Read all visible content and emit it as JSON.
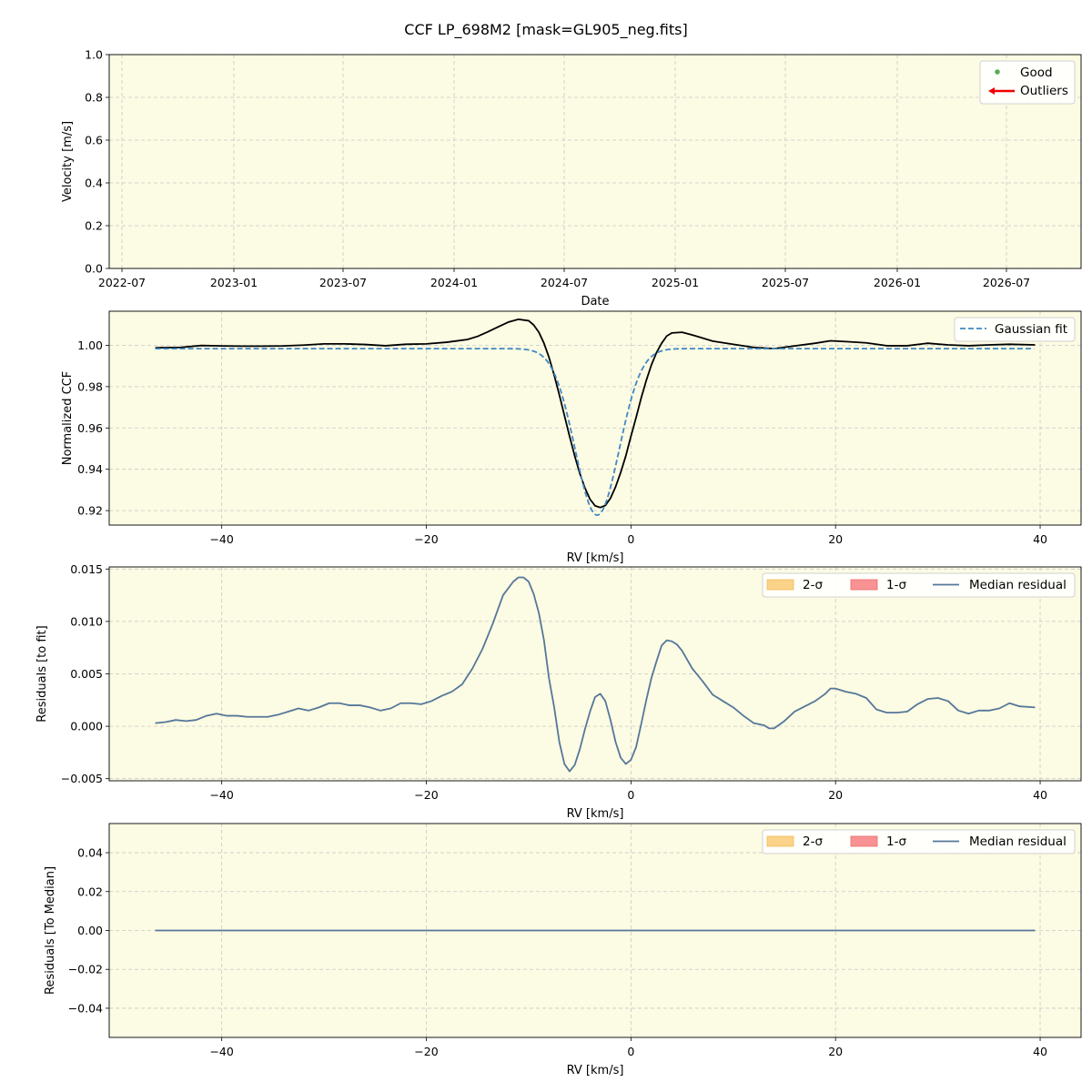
{
  "title": "CCF LP_698M2 [mask=GL905_neg.fits]",
  "colors": {
    "panel_bg": "#fcfbe3",
    "grid": "#c8c8c8",
    "good": "#5aab5a",
    "outlier": "#ee0000",
    "ccf": "#000000",
    "gauss": "#3f88c5",
    "median": "#55779a",
    "band2": "#fbd38a",
    "band1": "#f99393"
  },
  "chart_data": [
    {
      "type": "scatter",
      "xlabel": "Date",
      "ylabel": "Velocity [m/s]",
      "x_ticks": [
        "2022-07",
        "2023-01",
        "2023-07",
        "2024-01",
        "2024-07",
        "2025-01",
        "2025-07",
        "2026-01",
        "2026-07"
      ],
      "y_ticks": [
        "0.0",
        "0.2",
        "0.4",
        "0.6",
        "0.8",
        "1.0"
      ],
      "ylim": [
        0,
        1
      ],
      "grid": true,
      "legend_position": "top-right",
      "series": [
        {
          "name": "Good",
          "marker": "dot",
          "values": []
        },
        {
          "name": "Outliers",
          "marker": "left-arrow",
          "values": []
        }
      ]
    },
    {
      "type": "line",
      "xlabel": "RV [km/s]",
      "ylabel": "Normalized CCF",
      "x_ticks": [
        "−40",
        "−20",
        "0",
        "20",
        "40"
      ],
      "y_ticks": [
        "0.92",
        "0.94",
        "0.96",
        "0.98",
        "1.00"
      ],
      "xlim": [
        -51,
        44
      ],
      "ylim": [
        0.913,
        1.0165
      ],
      "grid": true,
      "legend_position": "top-right",
      "series": [
        {
          "style": "solid",
          "x": [
            -46.5,
            -44,
            -42,
            -40,
            -38,
            -36,
            -34,
            -32,
            -30,
            -28,
            -26,
            -24,
            -22,
            -20,
            -18,
            -16,
            -15,
            -14,
            -13,
            -12,
            -11,
            -10,
            -9.5,
            -9,
            -8.5,
            -8,
            -7.5,
            -7,
            -6.5,
            -6,
            -5.5,
            -5,
            -4.5,
            -4,
            -3.5,
            -3,
            -2.5,
            -2,
            -1.5,
            -1,
            -0.5,
            0,
            0.5,
            1,
            1.5,
            2,
            2.5,
            3,
            3.5,
            4,
            5,
            6,
            8,
            10,
            12,
            14,
            16,
            18,
            19.5,
            21,
            23,
            25,
            27,
            29,
            31,
            33,
            35,
            37,
            39.5
          ],
          "values": [
            0.9988,
            0.999,
            0.9999,
            0.9997,
            0.9996,
            0.9996,
            0.9997,
            1.0001,
            1.0007,
            1.0007,
            1.0004,
            0.9998,
            1.0005,
            1.0007,
            1.0015,
            1.0028,
            1.0043,
            1.0065,
            1.0089,
            1.0112,
            1.0126,
            1.0119,
            1.0098,
            1.0063,
            1.001,
            0.994,
            0.9855,
            0.976,
            0.966,
            0.956,
            0.9465,
            0.938,
            0.931,
            0.9255,
            0.9223,
            0.9215,
            0.9225,
            0.926,
            0.9315,
            0.9385,
            0.9465,
            0.956,
            0.965,
            0.9745,
            0.983,
            0.9905,
            0.9965,
            1.001,
            1.0045,
            1.006,
            1.0063,
            1.005,
            1.002,
            1.0005,
            0.999,
            0.9984,
            0.9997,
            1.001,
            1.0022,
            1.0018,
            1.0012,
            0.9998,
            0.9998,
            1.001,
            1.0002,
            0.9998,
            1.0002,
            1.0005,
            1.0002
          ]
        },
        {
          "name": "Gaussian fit",
          "style": "dashed",
          "model": "gaussian",
          "center": -3.3,
          "sigma": 2.15,
          "baseline": 0.9984,
          "depth": 0.0806
        }
      ]
    },
    {
      "type": "line",
      "xlabel": "RV [km/s]",
      "ylabel": "Residuals [to fit]",
      "x_ticks": [
        "−40",
        "−20",
        "0",
        "20",
        "40"
      ],
      "y_ticks": [
        "−0.005",
        "0.000",
        "0.005",
        "0.010",
        "0.015"
      ],
      "xlim": [
        -51,
        44
      ],
      "ylim": [
        -0.0052,
        0.0152
      ],
      "grid": true,
      "legend_position": "top-right",
      "legend_columns": 3,
      "series": [
        {
          "name": "2-σ",
          "kind": "band",
          "values": []
        },
        {
          "name": "1-σ",
          "kind": "band",
          "values": []
        },
        {
          "name": "Median residual",
          "x": [
            -46.5,
            -45.5,
            -44.5,
            -43.5,
            -42.5,
            -41.5,
            -40.5,
            -39.5,
            -38.5,
            -37.5,
            -36.5,
            -35.5,
            -34.5,
            -33.5,
            -32.5,
            -31.5,
            -30.5,
            -29.5,
            -28.5,
            -27.5,
            -26.5,
            -25.5,
            -24.5,
            -23.5,
            -22.5,
            -21.5,
            -20.5,
            -19.5,
            -18.5,
            -17.5,
            -16.5,
            -15.5,
            -14.5,
            -13.5,
            -12.5,
            -11.5,
            -11,
            -10.5,
            -10,
            -9.5,
            -9,
            -8.5,
            -8,
            -7.5,
            -7,
            -6.5,
            -6,
            -5.5,
            -5,
            -4.5,
            -4,
            -3.5,
            -3,
            -2.5,
            -2,
            -1.5,
            -1,
            -0.5,
            0,
            0.5,
            1,
            1.5,
            2,
            2.5,
            3,
            3.5,
            4,
            4.5,
            5,
            6,
            7,
            8,
            9,
            10,
            11,
            12,
            13,
            13.5,
            14,
            15,
            16,
            17,
            18,
            19,
            19.5,
            20,
            21,
            22,
            23,
            24,
            25,
            26,
            27,
            28,
            29,
            30,
            31,
            32,
            33,
            34,
            35,
            36,
            37,
            38,
            39.5
          ],
          "values": [
            0.0003,
            0.0004,
            0.0006,
            0.0005,
            0.0006,
            0.001,
            0.0012,
            0.001,
            0.001,
            0.0009,
            0.0009,
            0.0009,
            0.0011,
            0.0014,
            0.0017,
            0.0015,
            0.0018,
            0.0022,
            0.0022,
            0.002,
            0.002,
            0.0018,
            0.0015,
            0.0017,
            0.0022,
            0.0022,
            0.0021,
            0.0024,
            0.0029,
            0.0033,
            0.004,
            0.0055,
            0.0074,
            0.0098,
            0.0125,
            0.0138,
            0.0142,
            0.0142,
            0.0138,
            0.0126,
            0.0108,
            0.0082,
            0.0045,
            0.0018,
            -0.0015,
            -0.0036,
            -0.0043,
            -0.0037,
            -0.0022,
            -0.0003,
            0.0014,
            0.0028,
            0.0031,
            0.0024,
            0.0006,
            -0.0015,
            -0.003,
            -0.0036,
            -0.0032,
            -0.002,
            0.0002,
            0.0025,
            0.0046,
            0.0062,
            0.0077,
            0.0082,
            0.0081,
            0.0078,
            0.0072,
            0.0055,
            0.0043,
            0.003,
            0.0024,
            0.0018,
            0.001,
            0.0003,
            0.0001,
            -0.0002,
            -0.0002,
            0.0005,
            0.0014,
            0.0019,
            0.0024,
            0.0031,
            0.0036,
            0.0036,
            0.0033,
            0.0031,
            0.0027,
            0.0016,
            0.0013,
            0.0013,
            0.0014,
            0.0021,
            0.0026,
            0.0027,
            0.0024,
            0.0015,
            0.0012,
            0.0015,
            0.0015,
            0.0017,
            0.0022,
            0.0019,
            0.0018
          ]
        }
      ]
    },
    {
      "type": "line",
      "xlabel": "RV [km/s]",
      "ylabel": "Residuals [To Median]",
      "x_ticks": [
        "−40",
        "−20",
        "0",
        "20",
        "40"
      ],
      "y_ticks": [
        "−0.04",
        "−0.02",
        "0.00",
        "0.02",
        "0.04"
      ],
      "xlim": [
        -51,
        44
      ],
      "ylim": [
        -0.055,
        0.055
      ],
      "grid": true,
      "legend_position": "top-right",
      "legend_columns": 3,
      "series": [
        {
          "name": "2-σ",
          "kind": "band",
          "values": []
        },
        {
          "name": "1-σ",
          "kind": "band",
          "values": []
        },
        {
          "name": "Median residual",
          "x": [
            -46.5,
            39.5
          ],
          "values": [
            0,
            0
          ]
        }
      ]
    }
  ]
}
